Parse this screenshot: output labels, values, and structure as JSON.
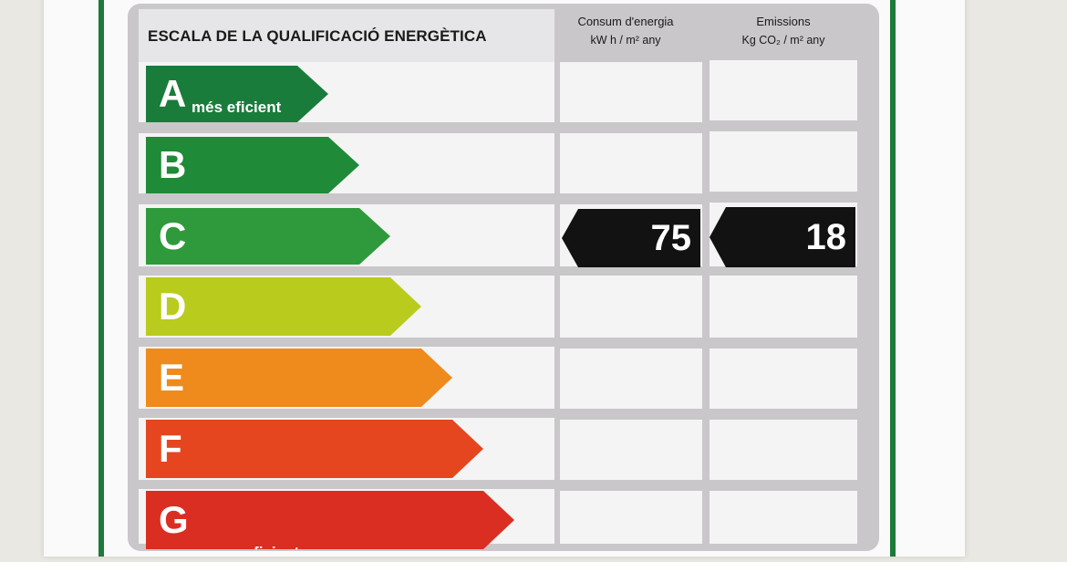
{
  "header": {
    "scale_title": "ESCALA DE LA QUALIFICACIÓ ENERGÈTICA",
    "consumption_title": "Consum d'energia",
    "consumption_unit": "kW h / m² any",
    "emissions_title": "Emissions",
    "emissions_unit": "Kg CO₂ / m² any"
  },
  "classes": [
    {
      "letter": "A",
      "subtitle": "més eficient",
      "color": "#1a7c3b"
    },
    {
      "letter": "B",
      "subtitle": "",
      "color": "#1f8a37"
    },
    {
      "letter": "C",
      "subtitle": "",
      "color": "#2f9a3c"
    },
    {
      "letter": "D",
      "subtitle": "",
      "color": "#b9cc1e"
    },
    {
      "letter": "E",
      "subtitle": "",
      "color": "#ef8a1c"
    },
    {
      "letter": "F",
      "subtitle": "",
      "color": "#e5461f"
    },
    {
      "letter": "G",
      "subtitle": "menys eficient",
      "color": "#db2e22"
    }
  ],
  "rating": {
    "class": "C",
    "consumption_value": "75",
    "emissions_value": "18",
    "tag_color": "#121212"
  }
}
